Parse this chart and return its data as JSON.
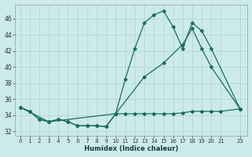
{
  "xlabel": "Humidex (Indice chaleur)",
  "bg_color": "#cceaea",
  "grid_color": "#b8d8d8",
  "line_color": "#1a6e5e",
  "xlim": [
    -0.5,
    23.8
  ],
  "ylim": [
    31.5,
    47.8
  ],
  "yticks": [
    32,
    34,
    36,
    38,
    40,
    42,
    44,
    46
  ],
  "xticks": [
    0,
    1,
    2,
    3,
    4,
    5,
    6,
    7,
    8,
    9,
    10,
    11,
    12,
    13,
    14,
    15,
    16,
    17,
    18,
    19,
    20,
    21,
    23
  ],
  "series1_x": [
    0,
    1,
    2,
    3,
    4,
    5,
    6,
    7,
    8,
    9,
    10,
    11,
    12,
    13,
    14,
    15,
    16,
    17,
    18,
    19,
    20,
    21,
    23
  ],
  "series1_y": [
    35.0,
    34.5,
    33.5,
    33.2,
    33.5,
    33.2,
    32.7,
    32.7,
    32.7,
    32.6,
    34.2,
    34.2,
    34.2,
    34.2,
    34.2,
    34.2,
    34.2,
    34.3,
    34.5,
    34.5,
    34.5,
    34.5,
    34.8
  ],
  "series2_x": [
    0,
    1,
    2,
    3,
    4,
    5,
    6,
    7,
    8,
    9,
    10,
    11,
    12,
    13,
    14,
    15,
    16,
    17,
    18,
    19,
    20,
    23
  ],
  "series2_y": [
    35.0,
    34.5,
    33.5,
    33.2,
    33.5,
    33.2,
    32.7,
    32.7,
    32.7,
    32.6,
    34.2,
    38.5,
    42.3,
    45.5,
    46.5,
    47.0,
    45.0,
    42.3,
    45.5,
    44.5,
    42.3,
    34.8
  ],
  "series3_x": [
    0,
    3,
    10,
    13,
    15,
    17,
    18,
    19,
    20,
    23
  ],
  "series3_y": [
    35.0,
    33.2,
    34.2,
    38.8,
    40.5,
    42.8,
    44.8,
    42.3,
    40.0,
    34.8
  ]
}
